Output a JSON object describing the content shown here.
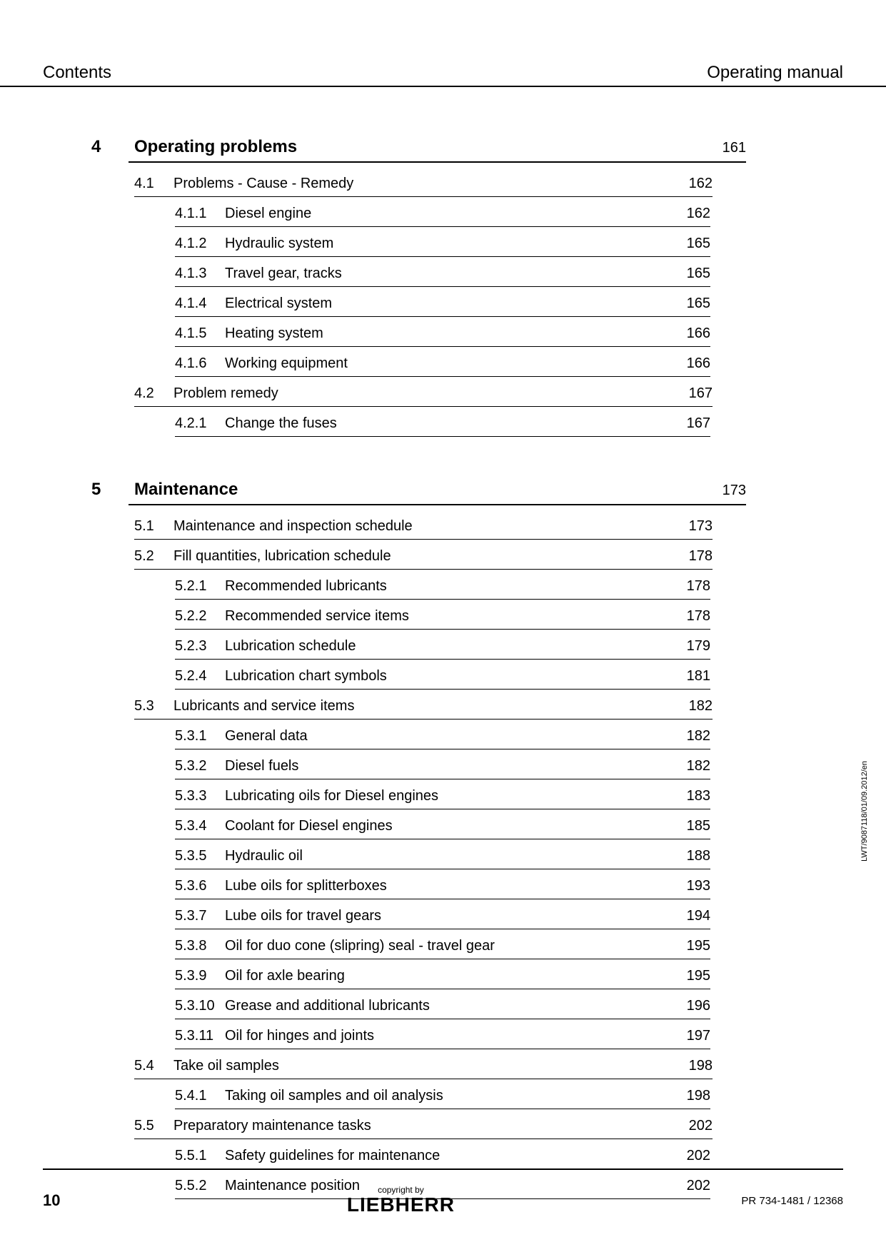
{
  "header": {
    "left": "Contents",
    "right": "Operating manual"
  },
  "chapters": [
    {
      "num": "4",
      "title": "Operating problems",
      "page": "161",
      "sections": [
        {
          "num": "4.1",
          "title": "Problems - Cause - Remedy",
          "page": "162",
          "subsections": [
            {
              "num": "4.1.1",
              "title": "Diesel engine",
              "page": "162"
            },
            {
              "num": "4.1.2",
              "title": "Hydraulic system",
              "page": "165"
            },
            {
              "num": "4.1.3",
              "title": "Travel gear, tracks",
              "page": "165"
            },
            {
              "num": "4.1.4",
              "title": "Electrical system",
              "page": "165"
            },
            {
              "num": "4.1.5",
              "title": "Heating system",
              "page": "166"
            },
            {
              "num": "4.1.6",
              "title": "Working equipment",
              "page": "166"
            }
          ]
        },
        {
          "num": "4.2",
          "title": "Problem remedy",
          "page": "167",
          "subsections": [
            {
              "num": "4.2.1",
              "title": "Change the fuses",
              "page": "167"
            }
          ]
        }
      ]
    },
    {
      "num": "5",
      "title": "Maintenance",
      "page": "173",
      "sections": [
        {
          "num": "5.1",
          "title": "Maintenance and inspection schedule",
          "page": "173",
          "subsections": []
        },
        {
          "num": "5.2",
          "title": "Fill quantities, lubrication schedule",
          "page": "178",
          "subsections": [
            {
              "num": "5.2.1",
              "title": "Recommended lubricants",
              "page": "178"
            },
            {
              "num": "5.2.2",
              "title": "Recommended service items",
              "page": "178"
            },
            {
              "num": "5.2.3",
              "title": "Lubrication schedule",
              "page": "179"
            },
            {
              "num": "5.2.4",
              "title": "Lubrication chart symbols",
              "page": "181"
            }
          ]
        },
        {
          "num": "5.3",
          "title": "Lubricants and service items",
          "page": "182",
          "subsections": [
            {
              "num": "5.3.1",
              "title": "General data",
              "page": "182"
            },
            {
              "num": "5.3.2",
              "title": "Diesel fuels",
              "page": "182"
            },
            {
              "num": "5.3.3",
              "title": "Lubricating oils for Diesel engines",
              "page": "183"
            },
            {
              "num": "5.3.4",
              "title": "Coolant for Diesel engines",
              "page": "185"
            },
            {
              "num": "5.3.5",
              "title": "Hydraulic oil",
              "page": "188"
            },
            {
              "num": "5.3.6",
              "title": "Lube oils for splitterboxes",
              "page": "193"
            },
            {
              "num": "5.3.7",
              "title": "Lube oils for travel gears",
              "page": "194"
            },
            {
              "num": "5.3.8",
              "title": "Oil for duo cone (slipring) seal - travel gear",
              "page": "195"
            },
            {
              "num": "5.3.9",
              "title": "Oil for axle bearing",
              "page": "195"
            },
            {
              "num": "5.3.10",
              "title": "Grease and additional lubricants",
              "page": "196"
            },
            {
              "num": "5.3.11",
              "title": "Oil for hinges and joints",
              "page": "197"
            }
          ]
        },
        {
          "num": "5.4",
          "title": "Take oil samples",
          "page": "198",
          "subsections": [
            {
              "num": "5.4.1",
              "title": "Taking oil samples and oil analysis",
              "page": "198"
            }
          ]
        },
        {
          "num": "5.5",
          "title": "Preparatory maintenance tasks",
          "page": "202",
          "subsections": [
            {
              "num": "5.5.1",
              "title": "Safety guidelines for maintenance",
              "page": "202"
            },
            {
              "num": "5.5.2",
              "title": "Maintenance position",
              "page": "202"
            }
          ]
        }
      ]
    }
  ],
  "footer": {
    "pageNumber": "10",
    "copyright": "copyright by",
    "brand": "LIEBHERR",
    "docRef": "PR 734-1481 / 12368"
  },
  "sideText": "LWT/9087118/01/09.2012/en"
}
